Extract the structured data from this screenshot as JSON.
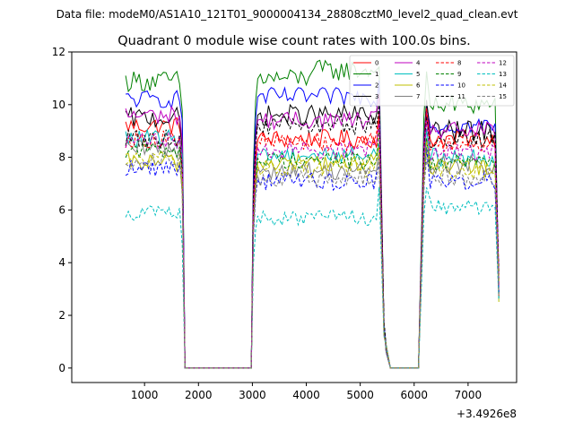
{
  "chart_data": {
    "type": "line",
    "suptitle": "Data file: modeM0/AS1A10_121T01_9000004134_28808cztM0_level2_quad_clean.evt",
    "title": "Quadrant 0 module wise count rates with 100.0s bins.",
    "xlabel": "",
    "ylabel": "",
    "x_offset_label": "+3.4926e8",
    "xlim": [
      -350,
      7900
    ],
    "ylim": [
      -0.55,
      12
    ],
    "x_ticks": [
      1000,
      2000,
      3000,
      4000,
      5000,
      6000,
      7000
    ],
    "y_ticks": [
      0,
      2,
      4,
      6,
      8,
      10,
      12
    ],
    "grid": false,
    "legend_position": "top-right",
    "legend_columns": 4,
    "x_segments": [
      [
        650,
        1750
      ],
      [
        2980,
        5350
      ],
      [
        5480,
        5560
      ],
      [
        6080,
        7570
      ]
    ],
    "gaps": [
      [
        1750,
        2980
      ],
      [
        5560,
        6080
      ]
    ],
    "series": [
      {
        "name": "0",
        "color": "#ff0000",
        "dash": "solid",
        "level": [
          9.2,
          8.7,
          8.9,
          8.7
        ],
        "amp": 0.35
      },
      {
        "name": "1",
        "color": "#008000",
        "dash": "solid",
        "level": [
          10.9,
          11.0,
          10.4,
          10.0
        ],
        "amp": 0.4
      },
      {
        "name": "2",
        "color": "#0000ff",
        "dash": "solid",
        "level": [
          10.2,
          10.3,
          9.9,
          9.2
        ],
        "amp": 0.35
      },
      {
        "name": "3",
        "color": "#000000",
        "dash": "solid",
        "level": [
          9.5,
          9.6,
          9.2,
          9.0
        ],
        "amp": 0.4
      },
      {
        "name": "4",
        "color": "#bf00bf",
        "dash": "solid",
        "level": [
          9.6,
          9.4,
          9.3,
          9.0
        ],
        "amp": 0.35
      },
      {
        "name": "5",
        "color": "#00bfbf",
        "dash": "solid",
        "level": [
          8.7,
          8.1,
          8.3,
          8.0
        ],
        "amp": 0.35
      },
      {
        "name": "6",
        "color": "#bfbf00",
        "dash": "solid",
        "level": [
          7.8,
          7.8,
          7.9,
          7.6
        ],
        "amp": 0.35
      },
      {
        "name": "7",
        "color": "#808080",
        "dash": "solid",
        "level": [
          8.3,
          7.5,
          7.9,
          7.7
        ],
        "amp": 0.35
      },
      {
        "name": "8",
        "color": "#ff0000",
        "dash": "dashed",
        "level": [
          8.7,
          8.6,
          8.6,
          8.5
        ],
        "amp": 0.35
      },
      {
        "name": "9",
        "color": "#008000",
        "dash": "dashed",
        "level": [
          8.3,
          7.9,
          8.0,
          7.8
        ],
        "amp": 0.35
      },
      {
        "name": "10",
        "color": "#0000ff",
        "dash": "dashed",
        "level": [
          7.6,
          7.1,
          7.6,
          7.1
        ],
        "amp": 0.35
      },
      {
        "name": "11",
        "color": "#000000",
        "dash": "dashed",
        "level": [
          8.7,
          9.2,
          8.8,
          8.7
        ],
        "amp": 0.35
      },
      {
        "name": "12",
        "color": "#bf00bf",
        "dash": "dashed",
        "level": [
          8.6,
          8.3,
          8.4,
          8.2
        ],
        "amp": 0.35
      },
      {
        "name": "13",
        "color": "#00bfbf",
        "dash": "dashed",
        "level": [
          5.9,
          5.7,
          6.6,
          6.1
        ],
        "amp": 0.3
      },
      {
        "name": "14",
        "color": "#bfbf00",
        "dash": "dashed",
        "level": [
          7.9,
          7.6,
          7.8,
          7.5
        ],
        "amp": 0.35
      },
      {
        "name": "15",
        "color": "#808080",
        "dash": "dashed",
        "level": [
          7.9,
          7.2,
          7.6,
          7.2
        ],
        "amp": 0.35
      }
    ]
  }
}
